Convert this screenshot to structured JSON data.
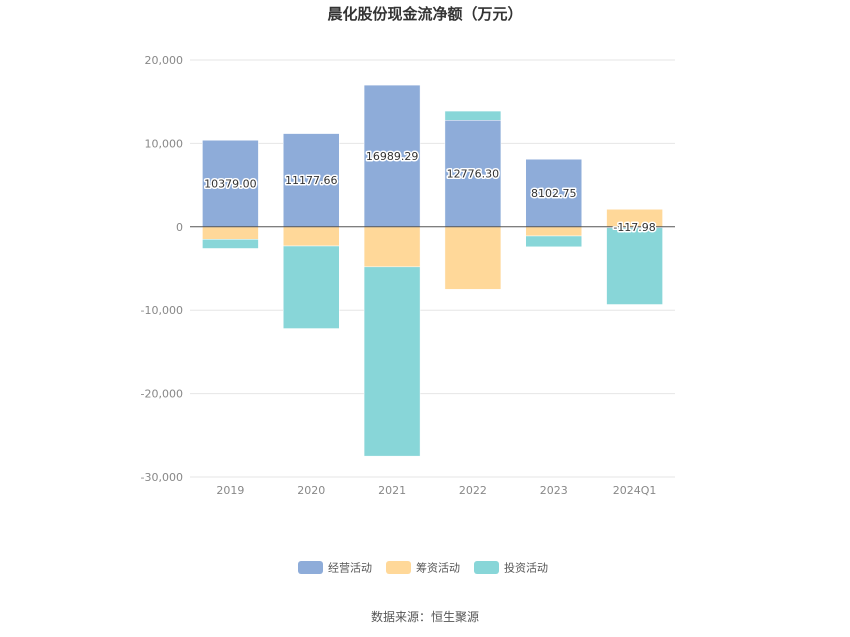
{
  "chart_data": {
    "type": "bar",
    "stacked": true,
    "title": "晨化股份现金流净额（万元）",
    "categories": [
      "2019",
      "2020",
      "2021",
      "2022",
      "2023",
      "2024Q1"
    ],
    "series": [
      {
        "name": "经营活动",
        "color": "#8eacd9",
        "values": [
          10379.0,
          11177.66,
          16989.29,
          12776.3,
          8102.75,
          -117.98
        ]
      },
      {
        "name": "筹资活动",
        "color": "#ffd899",
        "values": [
          -1500,
          -2300,
          -4800,
          -7500,
          -1100,
          2100
        ]
      },
      {
        "name": "投资活动",
        "color": "#88d6d8",
        "values": [
          -1100,
          -9900,
          -22700,
          1100,
          -1300,
          -9200
        ]
      }
    ],
    "data_labels": [
      "10379.00",
      "11177.66",
      "16989.29",
      "12776.30",
      "8102.75",
      "-117.98"
    ],
    "y_ticks": [
      "20,000",
      "10,000",
      "0",
      "-10,000",
      "-20,000",
      "-30,000"
    ],
    "y_tick_values": [
      20000,
      10000,
      0,
      -10000,
      -20000,
      -30000
    ],
    "ylim": [
      -30000,
      20000
    ],
    "grid": true,
    "legend": "bottom-center",
    "source": "数据来源：恒生聚源"
  }
}
